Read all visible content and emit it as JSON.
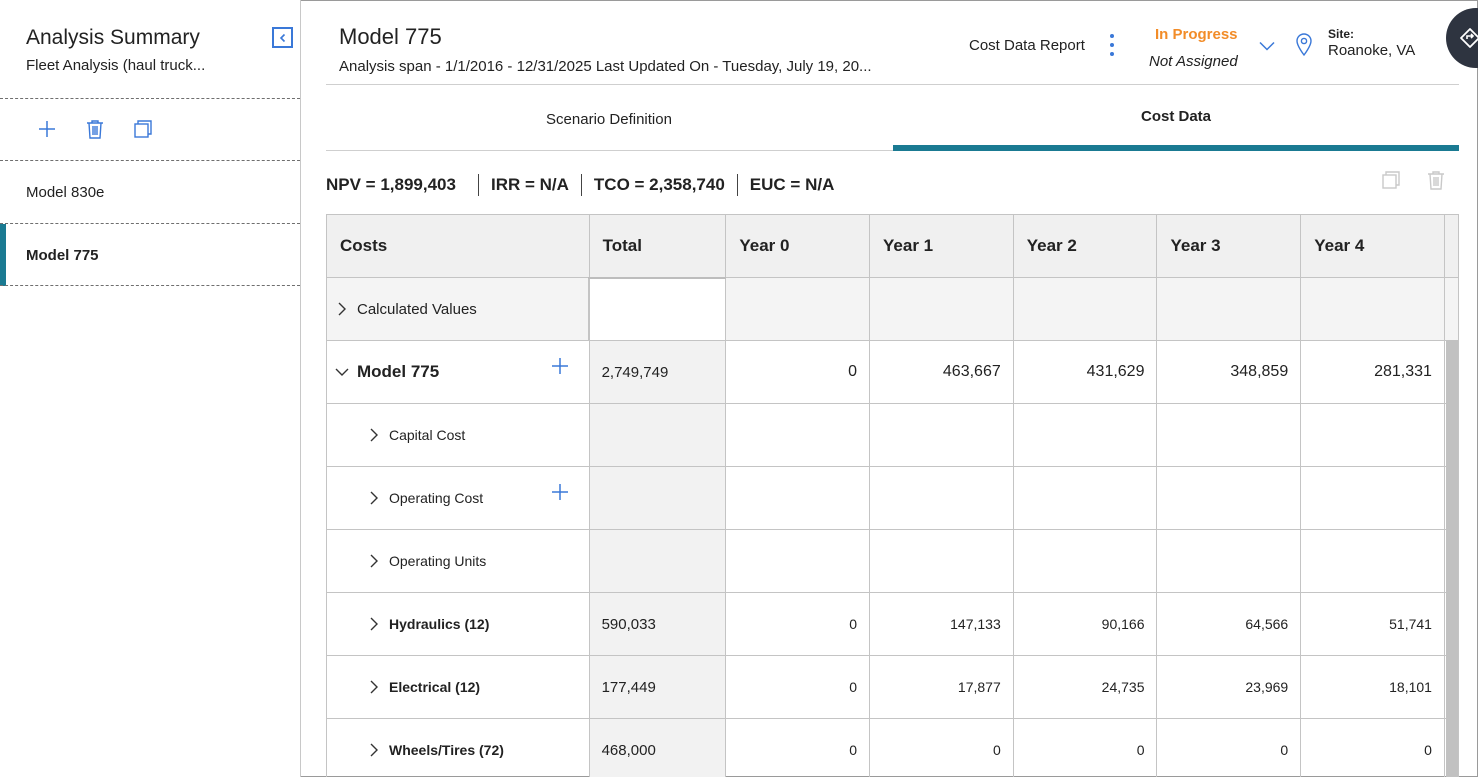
{
  "sidebar": {
    "title": "Analysis Summary",
    "subtitle": "Fleet Analysis (haul truck...",
    "items": [
      {
        "label": "Model 830e",
        "active": false
      },
      {
        "label": "Model 775",
        "active": true
      }
    ],
    "tool_icons": [
      "plus-icon",
      "trash-icon",
      "copy-icon"
    ]
  },
  "header": {
    "title": "Model 775",
    "span_text": "Analysis span - 1/1/2016 - 12/31/2025 Last Updated On - Tuesday, July 19, 20...",
    "report_label": "Cost Data Report",
    "status": "In Progress",
    "assigned": "Not Assigned",
    "site_label": "Site:",
    "site_value": "Roanoke, VA"
  },
  "tabs": [
    {
      "label": "Scenario Definition",
      "active": false
    },
    {
      "label": "Cost Data",
      "active": true
    }
  ],
  "metrics": [
    "NPV = 1,899,403",
    "IRR = N/A",
    "TCO = 2,358,740",
    "EUC = N/A"
  ],
  "grid": {
    "columns": [
      "Costs",
      "Total",
      "Year 0",
      "Year 1",
      "Year 2",
      "Year 3",
      "Year 4"
    ],
    "rows": [
      {
        "label": "Calculated Values",
        "expanded": false,
        "total": "",
        "years": [
          "",
          "",
          "",
          "",
          ""
        ]
      },
      {
        "label": "Model 775",
        "expanded": true,
        "total": "2,749,749",
        "years": [
          "0",
          "463,667",
          "431,629",
          "348,859",
          "281,331"
        ]
      },
      {
        "label": "Capital Cost",
        "expanded": false,
        "total": "",
        "years": [
          "",
          "",
          "",
          "",
          ""
        ]
      },
      {
        "label": "Operating Cost",
        "expanded": false,
        "total": "",
        "years": [
          "",
          "",
          "",
          "",
          ""
        ]
      },
      {
        "label": "Operating Units",
        "expanded": false,
        "total": "",
        "years": [
          "",
          "",
          "",
          "",
          ""
        ]
      },
      {
        "label": "Hydraulics (12)",
        "expanded": false,
        "total": "590,033",
        "years": [
          "0",
          "147,133",
          "90,166",
          "64,566",
          "51,741"
        ]
      },
      {
        "label": "Electrical (12)",
        "expanded": false,
        "total": "177,449",
        "years": [
          "0",
          "17,877",
          "24,735",
          "23,969",
          "18,101"
        ]
      },
      {
        "label": "Wheels/Tires (72)",
        "expanded": false,
        "total": "468,000",
        "years": [
          "0",
          "0",
          "0",
          "0",
          "0"
        ]
      }
    ]
  },
  "colors": {
    "accent": "#1a7a92",
    "status": "#f28c28",
    "icon_blue": "#3a78d8"
  }
}
